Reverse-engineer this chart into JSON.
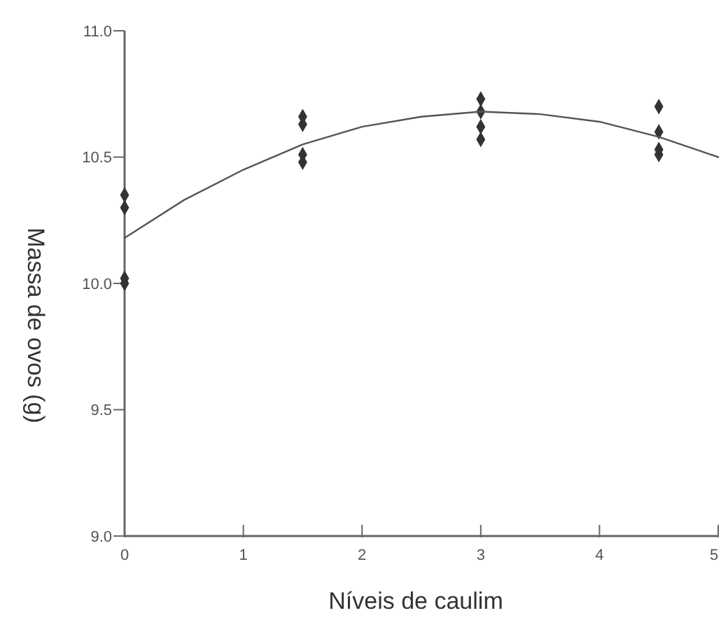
{
  "chart_data": {
    "type": "scatter",
    "xlabel": "Níveis de caulim",
    "ylabel": "Massa de ovos (g)",
    "xlim": [
      0,
      5
    ],
    "ylim": [
      9.0,
      11.0
    ],
    "xticks": [
      0,
      1,
      2,
      3,
      4,
      5
    ],
    "yticks": [
      {
        "value": 9,
        "label": "9.0"
      },
      {
        "value": 9.5,
        "label": "9.5"
      },
      {
        "value": 10,
        "label": "10.0"
      },
      {
        "value": 10.5,
        "label": "10.5"
      },
      {
        "value": 11,
        "label": "11.0"
      }
    ],
    "grid": false,
    "marker": "diamond",
    "series": [
      {
        "color": "#333333",
        "x": [
          0,
          0,
          0,
          0,
          1.5,
          1.5,
          1.5,
          1.5,
          3,
          3,
          3,
          3,
          4.5,
          4.5,
          4.5,
          4.5
        ],
        "values": [
          10.35,
          10.3,
          10.02,
          10.0,
          10.66,
          10.63,
          10.51,
          10.48,
          10.73,
          10.68,
          10.62,
          10.57,
          10.7,
          10.6,
          10.53,
          10.51
        ]
      },
      {
        "type": "line",
        "color": "#555555",
        "marker": "none",
        "line_style": "solid",
        "x": [
          0,
          0.5,
          1,
          1.5,
          2,
          2.5,
          3,
          3.5,
          4,
          4.5,
          5
        ],
        "values": [
          10.18,
          10.33,
          10.45,
          10.55,
          10.62,
          10.66,
          10.68,
          10.67,
          10.64,
          10.58,
          10.5
        ]
      }
    ]
  }
}
